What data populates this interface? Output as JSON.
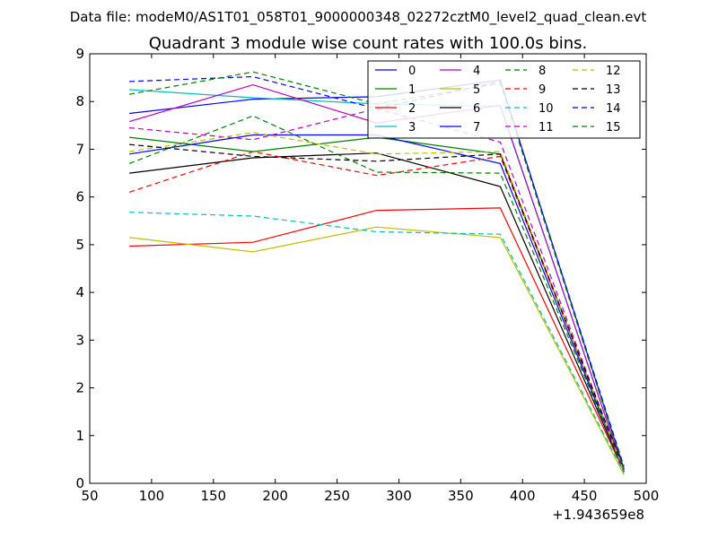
{
  "chart_data": {
    "type": "line",
    "suptitle": "Data file: modeM0/AS1T01_058T01_9000000348_02272cztM0_level2_quad_clean.evt",
    "title": "Quadrant 3 module wise count rates with 100.0s bins.",
    "xlabel": "",
    "ylabel": "",
    "x_offset_label": "+1.943659e8",
    "xlim": [
      50,
      500
    ],
    "ylim": [
      0,
      9
    ],
    "xticks": [
      "50",
      "100",
      "150",
      "200",
      "250",
      "300",
      "350",
      "400",
      "450",
      "500"
    ],
    "yticks": [
      "0",
      "1",
      "2",
      "3",
      "4",
      "5",
      "6",
      "7",
      "8",
      "9"
    ],
    "grid": false,
    "legend_position": "top-right",
    "x": [
      82,
      182,
      282,
      382,
      482
    ],
    "series": [
      {
        "name": "0",
        "color": "#0000ff",
        "dash": "solid",
        "values": [
          7.75,
          8.05,
          8.1,
          8.45,
          0.3
        ]
      },
      {
        "name": "1",
        "color": "#008000",
        "dash": "solid",
        "values": [
          7.25,
          6.95,
          7.25,
          6.9,
          0.25
        ]
      },
      {
        "name": "2",
        "color": "#ff0000",
        "dash": "solid",
        "values": [
          4.97,
          5.05,
          5.72,
          5.77,
          0.25
        ]
      },
      {
        "name": "3",
        "color": "#00bfbf",
        "dash": "solid",
        "values": [
          8.25,
          8.08,
          7.95,
          7.9,
          0.25
        ]
      },
      {
        "name": "4",
        "color": "#bf00bf",
        "dash": "solid",
        "values": [
          7.58,
          8.35,
          7.55,
          7.92,
          0.25
        ]
      },
      {
        "name": "5",
        "color": "#bfbf00",
        "dash": "solid",
        "values": [
          5.15,
          4.85,
          5.37,
          5.15,
          0.18
        ]
      },
      {
        "name": "6",
        "color": "#000000",
        "dash": "solid",
        "values": [
          6.5,
          6.82,
          6.92,
          6.22,
          0.25
        ]
      },
      {
        "name": "7",
        "color": "#0000ff",
        "dash": "solid",
        "values": [
          6.9,
          7.3,
          7.3,
          6.7,
          0.25
        ]
      },
      {
        "name": "8",
        "color": "#008000",
        "dash": "dashed",
        "values": [
          6.7,
          7.7,
          6.52,
          6.5,
          0.25
        ]
      },
      {
        "name": "9",
        "color": "#ff0000",
        "dash": "dashed",
        "values": [
          6.1,
          6.95,
          6.45,
          6.85,
          0.28
        ]
      },
      {
        "name": "10",
        "color": "#00bfbf",
        "dash": "dashed",
        "values": [
          5.68,
          5.6,
          5.27,
          5.22,
          0.22
        ]
      },
      {
        "name": "11",
        "color": "#bf00bf",
        "dash": "dashed",
        "values": [
          7.45,
          7.2,
          7.85,
          7.15,
          0.25
        ]
      },
      {
        "name": "12",
        "color": "#bfbf00",
        "dash": "dashed",
        "values": [
          6.95,
          7.35,
          6.9,
          6.95,
          0.25
        ]
      },
      {
        "name": "13",
        "color": "#000000",
        "dash": "dashed",
        "values": [
          7.1,
          6.85,
          6.75,
          6.9,
          0.3
        ]
      },
      {
        "name": "14",
        "color": "#0000ff",
        "dash": "dashed",
        "values": [
          8.42,
          8.52,
          7.85,
          8.42,
          0.35
        ]
      },
      {
        "name": "15",
        "color": "#008000",
        "dash": "dashed",
        "values": [
          8.15,
          8.62,
          7.95,
          8.38,
          0.28
        ]
      }
    ]
  }
}
